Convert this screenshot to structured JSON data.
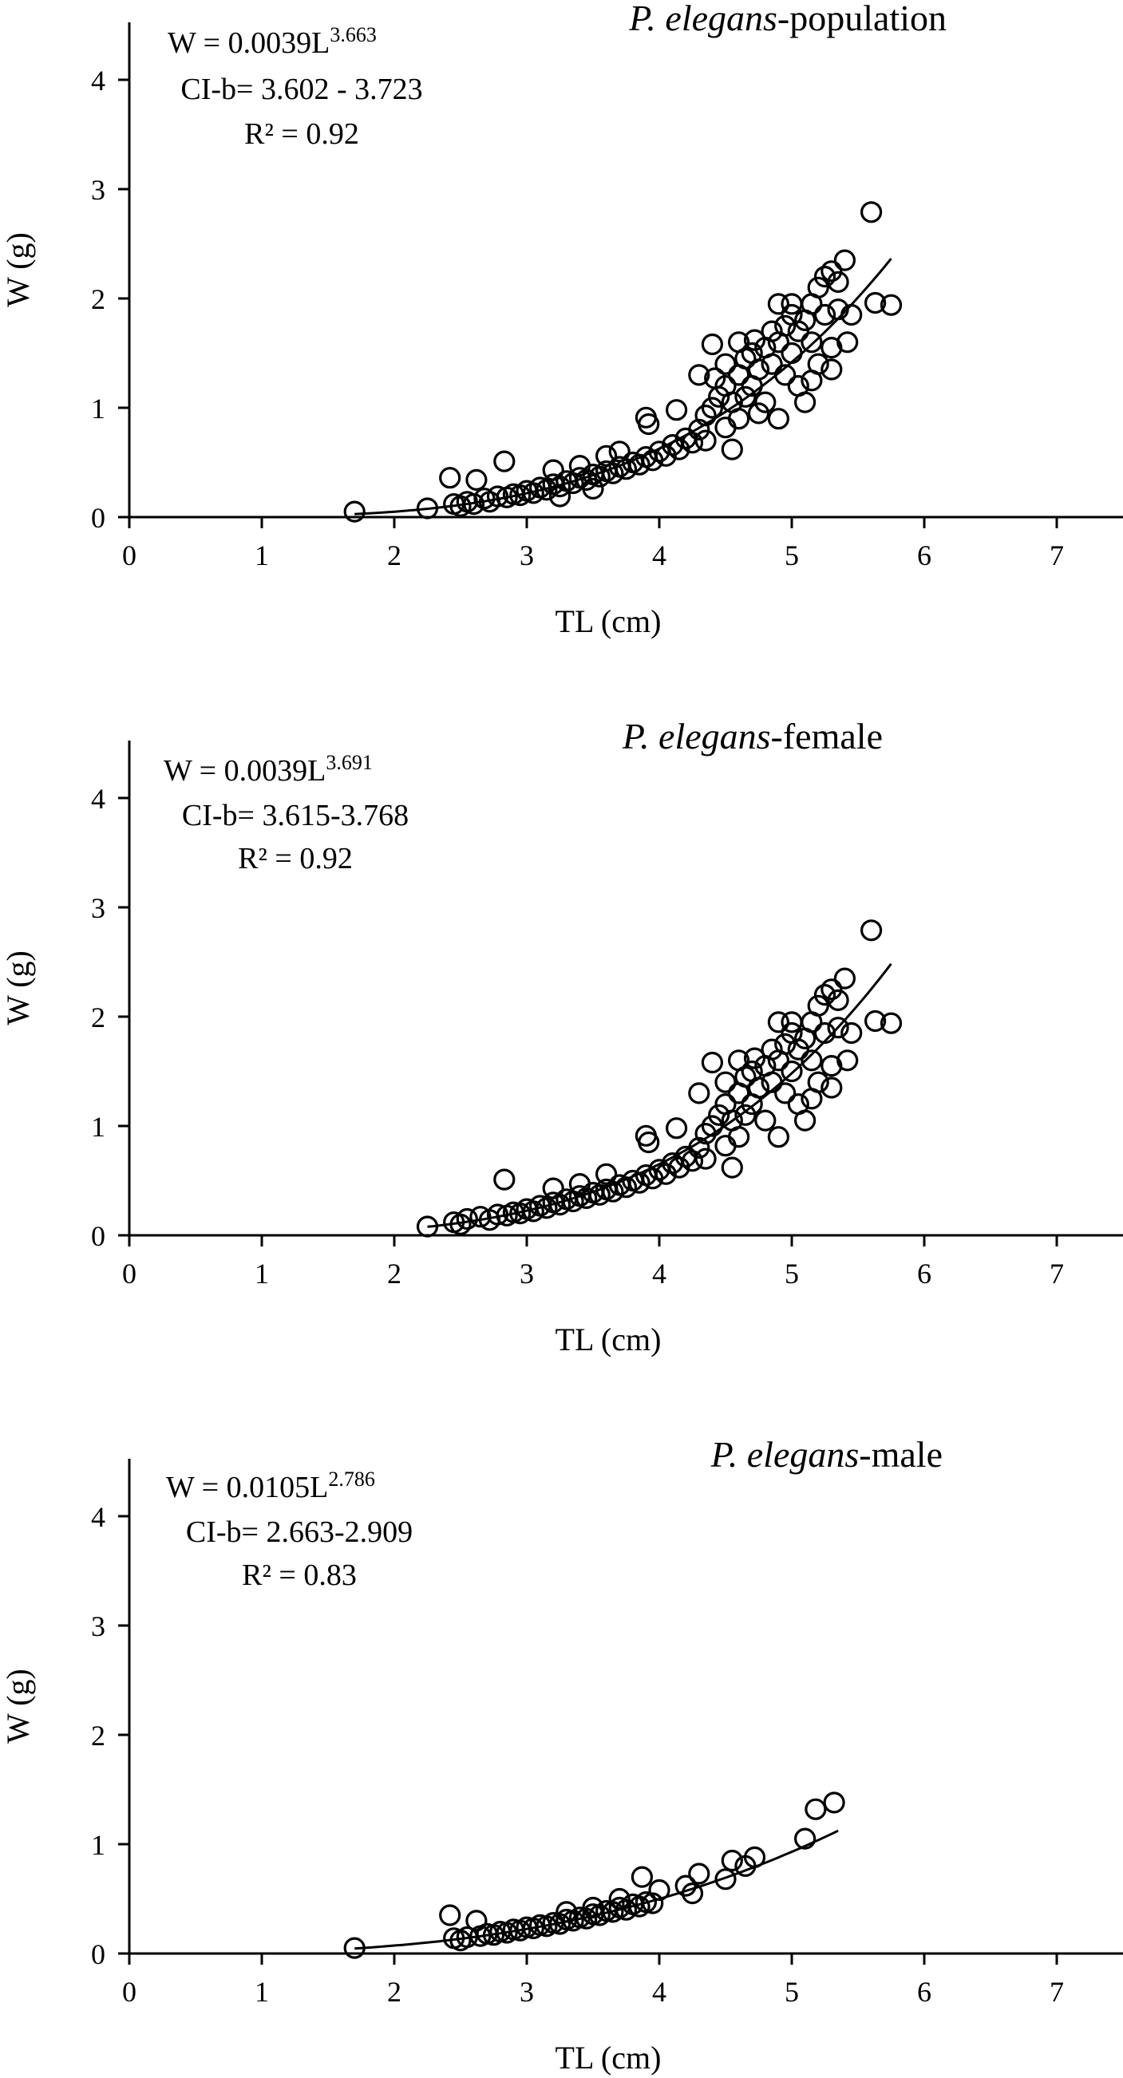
{
  "chart_data": [
    {
      "type": "scatter",
      "title": {
        "species": "P. elegans",
        "suffix": "-population"
      },
      "xlabel": "TL (cm)",
      "ylabel": "W (g)",
      "xlim": [
        0,
        7.5
      ],
      "ylim": [
        0,
        4.5
      ],
      "xticks": [
        "0",
        "1",
        "2",
        "3",
        "4",
        "5",
        "6",
        "7"
      ],
      "yticks": [
        "0",
        "1",
        "2",
        "3",
        "4"
      ],
      "grid": false,
      "annotation": {
        "equation_base": "W = 0.0039L",
        "equation_exponent": "3.663",
        "ci": "CI-b= 3.602 - 3.723",
        "r2": "R² = 0.92"
      },
      "fit": {
        "a": 0.0039,
        "b": 3.663,
        "x_range": [
          1.7,
          5.75
        ]
      },
      "points": [
        [
          1.7,
          0.05
        ],
        [
          2.25,
          0.08
        ],
        [
          2.42,
          0.36
        ],
        [
          2.62,
          0.34
        ],
        [
          2.83,
          0.51
        ],
        [
          2.45,
          0.12
        ],
        [
          2.5,
          0.1
        ],
        [
          2.55,
          0.14
        ],
        [
          2.6,
          0.12
        ],
        [
          2.68,
          0.17
        ],
        [
          2.72,
          0.14
        ],
        [
          2.78,
          0.19
        ],
        [
          2.85,
          0.18
        ],
        [
          2.9,
          0.21
        ],
        [
          2.95,
          0.2
        ],
        [
          3.0,
          0.24
        ],
        [
          3.05,
          0.22
        ],
        [
          3.1,
          0.27
        ],
        [
          3.15,
          0.25
        ],
        [
          3.2,
          0.3
        ],
        [
          3.25,
          0.28
        ],
        [
          3.3,
          0.33
        ],
        [
          3.35,
          0.31
        ],
        [
          3.4,
          0.36
        ],
        [
          3.45,
          0.34
        ],
        [
          3.5,
          0.39
        ],
        [
          3.55,
          0.37
        ],
        [
          3.6,
          0.42
        ],
        [
          3.65,
          0.4
        ],
        [
          3.7,
          0.46
        ],
        [
          3.75,
          0.44
        ],
        [
          3.8,
          0.5
        ],
        [
          3.85,
          0.48
        ],
        [
          3.9,
          0.55
        ],
        [
          3.95,
          0.52
        ],
        [
          4.0,
          0.6
        ],
        [
          4.05,
          0.56
        ],
        [
          4.1,
          0.66
        ],
        [
          4.15,
          0.62
        ],
        [
          4.2,
          0.72
        ],
        [
          4.25,
          0.68
        ],
        [
          3.2,
          0.43
        ],
        [
          3.4,
          0.47
        ],
        [
          3.6,
          0.56
        ],
        [
          3.7,
          0.6
        ],
        [
          3.25,
          0.19
        ],
        [
          3.5,
          0.26
        ],
        [
          3.9,
          0.91
        ],
        [
          3.92,
          0.85
        ],
        [
          4.13,
          0.98
        ],
        [
          4.3,
          1.3
        ],
        [
          4.4,
          1.58
        ],
        [
          4.35,
          0.7
        ],
        [
          4.3,
          0.8
        ],
        [
          4.35,
          0.93
        ],
        [
          4.4,
          1.0
        ],
        [
          4.45,
          1.1
        ],
        [
          4.5,
          0.82
        ],
        [
          4.5,
          1.2
        ],
        [
          4.55,
          1.05
        ],
        [
          4.55,
          0.62
        ],
        [
          4.6,
          1.3
        ],
        [
          4.6,
          0.9
        ],
        [
          4.65,
          1.45
        ],
        [
          4.65,
          1.1
        ],
        [
          4.7,
          1.5
        ],
        [
          4.7,
          1.2
        ],
        [
          4.72,
          1.62
        ],
        [
          4.75,
          1.35
        ],
        [
          4.8,
          1.55
        ],
        [
          4.8,
          1.05
        ],
        [
          4.85,
          1.4
        ],
        [
          4.85,
          1.7
        ],
        [
          4.9,
          1.6
        ],
        [
          4.9,
          0.9
        ],
        [
          4.95,
          1.75
        ],
        [
          4.95,
          1.3
        ],
        [
          5.0,
          1.85
        ],
        [
          5.0,
          1.5
        ],
        [
          5.05,
          1.7
        ],
        [
          5.05,
          1.2
        ],
        [
          5.1,
          1.8
        ],
        [
          5.1,
          1.05
        ],
        [
          5.15,
          1.95
        ],
        [
          5.15,
          1.6
        ],
        [
          5.2,
          2.1
        ],
        [
          5.2,
          1.4
        ],
        [
          5.25,
          2.2
        ],
        [
          5.25,
          1.85
        ],
        [
          5.3,
          2.25
        ],
        [
          5.3,
          1.55
        ],
        [
          5.35,
          1.9
        ],
        [
          5.4,
          2.35
        ],
        [
          5.45,
          1.85
        ],
        [
          5.42,
          1.6
        ],
        [
          5.6,
          2.79
        ],
        [
          5.63,
          1.96
        ],
        [
          5.75,
          1.94
        ],
        [
          5.3,
          1.35
        ],
        [
          5.15,
          1.25
        ],
        [
          4.9,
          1.95
        ],
        [
          4.75,
          0.95
        ],
        [
          4.6,
          1.6
        ],
        [
          4.5,
          1.4
        ],
        [
          4.42,
          1.27
        ],
        [
          5.0,
          1.95
        ],
        [
          5.35,
          2.15
        ]
      ]
    },
    {
      "type": "scatter",
      "title": {
        "species": "P. elegans",
        "suffix": "-female"
      },
      "xlabel": "TL (cm)",
      "ylabel": "W (g)",
      "xlim": [
        0,
        7.5
      ],
      "ylim": [
        0,
        4.5
      ],
      "xticks": [
        "0",
        "1",
        "2",
        "3",
        "4",
        "5",
        "6",
        "7"
      ],
      "yticks": [
        "0",
        "1",
        "2",
        "3",
        "4"
      ],
      "grid": false,
      "annotation": {
        "equation_base": "W = 0.0039L",
        "equation_exponent": "3.691",
        "ci": "CI-b= 3.615-3.768",
        "r2": "R² = 0.92"
      },
      "fit": {
        "a": 0.0039,
        "b": 3.691,
        "x_range": [
          2.25,
          5.75
        ]
      },
      "points": [
        [
          2.25,
          0.08
        ],
        [
          2.83,
          0.51
        ],
        [
          2.45,
          0.12
        ],
        [
          2.5,
          0.1
        ],
        [
          2.55,
          0.15
        ],
        [
          2.65,
          0.17
        ],
        [
          2.72,
          0.14
        ],
        [
          2.78,
          0.19
        ],
        [
          2.85,
          0.18
        ],
        [
          2.9,
          0.21
        ],
        [
          2.95,
          0.2
        ],
        [
          3.0,
          0.24
        ],
        [
          3.05,
          0.22
        ],
        [
          3.1,
          0.27
        ],
        [
          3.15,
          0.25
        ],
        [
          3.2,
          0.3
        ],
        [
          3.25,
          0.28
        ],
        [
          3.3,
          0.33
        ],
        [
          3.35,
          0.31
        ],
        [
          3.4,
          0.36
        ],
        [
          3.45,
          0.34
        ],
        [
          3.5,
          0.39
        ],
        [
          3.55,
          0.37
        ],
        [
          3.6,
          0.42
        ],
        [
          3.65,
          0.4
        ],
        [
          3.7,
          0.46
        ],
        [
          3.75,
          0.44
        ],
        [
          3.8,
          0.5
        ],
        [
          3.85,
          0.48
        ],
        [
          3.9,
          0.55
        ],
        [
          3.95,
          0.52
        ],
        [
          4.0,
          0.6
        ],
        [
          4.05,
          0.56
        ],
        [
          4.1,
          0.66
        ],
        [
          4.15,
          0.62
        ],
        [
          4.2,
          0.72
        ],
        [
          4.25,
          0.68
        ],
        [
          3.2,
          0.43
        ],
        [
          3.4,
          0.47
        ],
        [
          3.6,
          0.56
        ],
        [
          3.9,
          0.91
        ],
        [
          3.92,
          0.85
        ],
        [
          4.13,
          0.98
        ],
        [
          4.3,
          1.3
        ],
        [
          4.4,
          1.58
        ],
        [
          4.35,
          0.7
        ],
        [
          4.3,
          0.8
        ],
        [
          4.35,
          0.93
        ],
        [
          4.4,
          1.0
        ],
        [
          4.45,
          1.1
        ],
        [
          4.5,
          0.82
        ],
        [
          4.5,
          1.2
        ],
        [
          4.55,
          1.05
        ],
        [
          4.55,
          0.62
        ],
        [
          4.6,
          1.3
        ],
        [
          4.6,
          0.9
        ],
        [
          4.65,
          1.45
        ],
        [
          4.65,
          1.1
        ],
        [
          4.7,
          1.5
        ],
        [
          4.7,
          1.2
        ],
        [
          4.72,
          1.62
        ],
        [
          4.75,
          1.35
        ],
        [
          4.8,
          1.55
        ],
        [
          4.8,
          1.05
        ],
        [
          4.85,
          1.4
        ],
        [
          4.85,
          1.7
        ],
        [
          4.9,
          1.6
        ],
        [
          4.9,
          0.9
        ],
        [
          4.95,
          1.75
        ],
        [
          4.95,
          1.3
        ],
        [
          5.0,
          1.85
        ],
        [
          5.0,
          1.5
        ],
        [
          5.05,
          1.7
        ],
        [
          5.05,
          1.2
        ],
        [
          5.1,
          1.8
        ],
        [
          5.1,
          1.05
        ],
        [
          5.15,
          1.95
        ],
        [
          5.15,
          1.6
        ],
        [
          5.2,
          2.1
        ],
        [
          5.2,
          1.4
        ],
        [
          5.25,
          2.2
        ],
        [
          5.25,
          1.85
        ],
        [
          5.3,
          2.25
        ],
        [
          5.3,
          1.55
        ],
        [
          5.35,
          1.9
        ],
        [
          5.4,
          2.35
        ],
        [
          5.45,
          1.85
        ],
        [
          5.42,
          1.6
        ],
        [
          5.6,
          2.79
        ],
        [
          5.63,
          1.96
        ],
        [
          5.75,
          1.94
        ],
        [
          5.3,
          1.35
        ],
        [
          5.15,
          1.25
        ],
        [
          4.9,
          1.95
        ],
        [
          4.6,
          1.6
        ],
        [
          4.5,
          1.4
        ],
        [
          5.0,
          1.95
        ],
        [
          5.35,
          2.15
        ]
      ]
    },
    {
      "type": "scatter",
      "title": {
        "species": "P. elegans",
        "suffix": "-male"
      },
      "xlabel": "TL (cm)",
      "ylabel": "W (g)",
      "xlim": [
        0,
        7.5
      ],
      "ylim": [
        0,
        4.5
      ],
      "xticks": [
        "0",
        "1",
        "2",
        "3",
        "4",
        "5",
        "6",
        "7"
      ],
      "yticks": [
        "0",
        "1",
        "2",
        "3",
        "4"
      ],
      "grid": false,
      "annotation": {
        "equation_base": "W = 0.0105L",
        "equation_exponent": "2.786",
        "ci": "CI-b= 2.663-2.909",
        "r2": "R² = 0.83"
      },
      "fit": {
        "a": 0.0105,
        "b": 2.786,
        "x_range": [
          1.7,
          5.35
        ]
      },
      "points": [
        [
          1.7,
          0.05
        ],
        [
          2.42,
          0.35
        ],
        [
          2.45,
          0.14
        ],
        [
          2.5,
          0.12
        ],
        [
          2.55,
          0.15
        ],
        [
          2.62,
          0.3
        ],
        [
          2.65,
          0.16
        ],
        [
          2.7,
          0.18
        ],
        [
          2.75,
          0.17
        ],
        [
          2.8,
          0.2
        ],
        [
          2.85,
          0.19
        ],
        [
          2.9,
          0.22
        ],
        [
          2.95,
          0.21
        ],
        [
          3.0,
          0.24
        ],
        [
          3.05,
          0.23
        ],
        [
          3.1,
          0.26
        ],
        [
          3.15,
          0.25
        ],
        [
          3.2,
          0.28
        ],
        [
          3.25,
          0.27
        ],
        [
          3.3,
          0.31
        ],
        [
          3.35,
          0.3
        ],
        [
          3.4,
          0.33
        ],
        [
          3.45,
          0.32
        ],
        [
          3.5,
          0.36
        ],
        [
          3.55,
          0.35
        ],
        [
          3.6,
          0.39
        ],
        [
          3.65,
          0.38
        ],
        [
          3.7,
          0.42
        ],
        [
          3.75,
          0.4
        ],
        [
          3.8,
          0.45
        ],
        [
          3.85,
          0.43
        ],
        [
          3.9,
          0.47
        ],
        [
          3.95,
          0.46
        ],
        [
          3.3,
          0.38
        ],
        [
          3.5,
          0.42
        ],
        [
          3.7,
          0.5
        ],
        [
          3.87,
          0.7
        ],
        [
          4.0,
          0.58
        ],
        [
          4.2,
          0.62
        ],
        [
          4.25,
          0.55
        ],
        [
          4.3,
          0.73
        ],
        [
          4.5,
          0.68
        ],
        [
          4.55,
          0.85
        ],
        [
          4.65,
          0.8
        ],
        [
          4.72,
          0.88
        ],
        [
          5.1,
          1.05
        ],
        [
          5.18,
          1.32
        ],
        [
          5.32,
          1.38
        ]
      ]
    }
  ]
}
